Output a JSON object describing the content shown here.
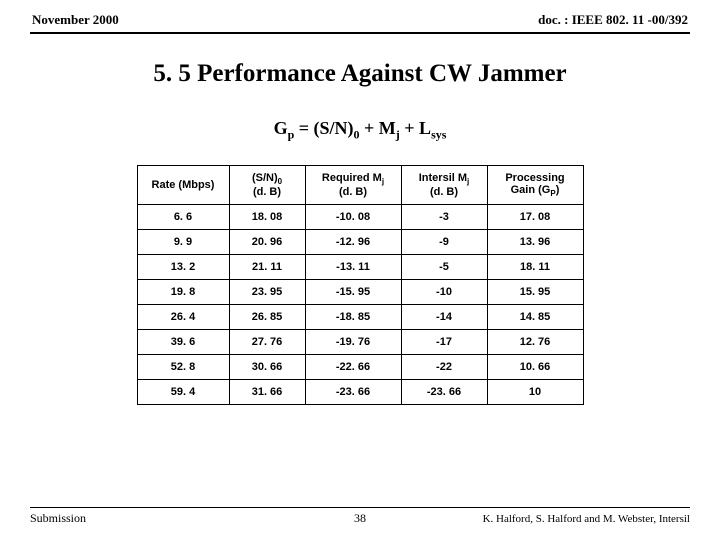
{
  "header": {
    "left": "November 2000",
    "right": "doc. : IEEE 802. 11 -00/392"
  },
  "title": "5. 5 Performance Against CW Jammer",
  "equation": {
    "lhs_G": "G",
    "lhs_p": "p",
    "eq": " = (S/N)",
    "zero": "0",
    "plus1": " + M",
    "j": "j",
    "plus2": " + L",
    "sys": "sys"
  },
  "table": {
    "columns": [
      {
        "line1": "Rate (Mbps)",
        "line2": ""
      },
      {
        "line1_pre": "(S/N)",
        "line1_sub": "0",
        "line2": "(d. B)"
      },
      {
        "line1_pre": "Required M",
        "line1_sub": "j",
        "line2": "(d. B)"
      },
      {
        "line1_pre": "Intersil M",
        "line1_sub": "j",
        "line2": "(d. B)"
      },
      {
        "line1_pre": "Processing",
        "line2_pre": "Gain (G",
        "line2_sub": "P",
        "line2_post": ")"
      }
    ],
    "rows": [
      [
        "6. 6",
        "18. 08",
        "-10. 08",
        "-3",
        "17. 08"
      ],
      [
        "9. 9",
        "20. 96",
        "-12. 96",
        "-9",
        "13. 96"
      ],
      [
        "13. 2",
        "21. 11",
        "-13. 11",
        "-5",
        "18. 11"
      ],
      [
        "19. 8",
        "23. 95",
        "-15. 95",
        "-10",
        "15. 95"
      ],
      [
        "26. 4",
        "26. 85",
        "-18. 85",
        "-14",
        "14. 85"
      ],
      [
        "39. 6",
        "27. 76",
        "-19. 76",
        "-17",
        "12. 76"
      ],
      [
        "52. 8",
        "30. 66",
        "-22. 66",
        "-22",
        "10. 66"
      ],
      [
        "59. 4",
        "31. 66",
        "-23. 66",
        "-23. 66",
        "10"
      ]
    ]
  },
  "footer": {
    "submission": "Submission",
    "page": "38",
    "authors": "K. Halford,  S. Halford and M. Webster, Intersil"
  }
}
